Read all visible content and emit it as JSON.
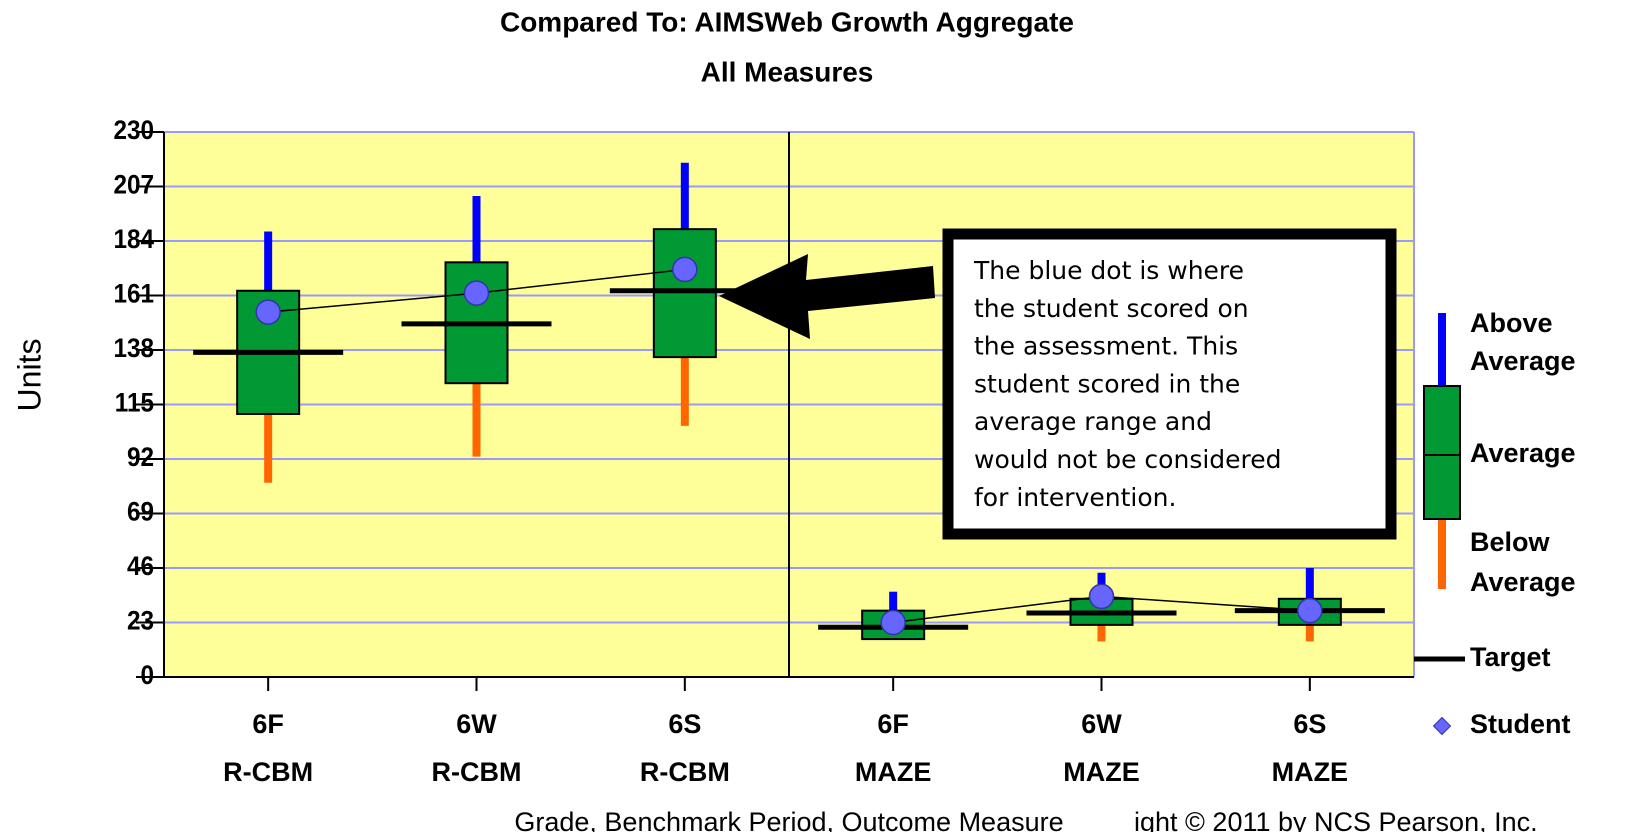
{
  "chart_data": {
    "type": "box",
    "title": [
      "Compared To: AIMSWeb Growth Aggregate",
      "All Measures"
    ],
    "y_label": "Units",
    "x_label": "Grade, Benchmark Period, Outcome Measure",
    "copyright": "ight © 2011 by NCS Pearson, Inc.",
    "categories": [
      [
        "6F",
        "R-CBM"
      ],
      [
        "6W",
        "R-CBM"
      ],
      [
        "6S",
        "R-CBM"
      ],
      [
        "6F",
        "MAZE"
      ],
      [
        "6W",
        "MAZE"
      ],
      [
        "6S",
        "MAZE"
      ]
    ],
    "whisker_high": [
      188,
      203,
      217,
      36,
      44,
      46
    ],
    "box_high": [
      163,
      175,
      189,
      28,
      33,
      33
    ],
    "box_low": [
      111,
      124,
      135,
      16,
      22,
      22
    ],
    "whisker_low": [
      82,
      93,
      106,
      null,
      15,
      15
    ],
    "target": [
      137,
      149,
      163,
      21,
      27,
      28
    ],
    "student": [
      154,
      162,
      172,
      23,
      34,
      28
    ],
    "ylim": [
      0,
      230
    ],
    "yticks": [
      0,
      23,
      46,
      69,
      92,
      115,
      138,
      161,
      184,
      207,
      230
    ],
    "grid": true,
    "colors": {
      "plot_background": "#ffff99",
      "grid": "#9999ff",
      "above": "#0000ff",
      "box": "#009933",
      "below": "#ff6600",
      "target": "#000000",
      "student": "#6666ff"
    },
    "legend": [
      [
        "Above",
        "Average"
      ],
      [
        "Average"
      ],
      [
        "Below",
        "Average"
      ],
      [
        "Target"
      ],
      [
        "Student"
      ]
    ],
    "annotation": [
      "The blue dot is where",
      "the student scored on",
      "the assessment.  This",
      "student scored in the",
      "average range and",
      "would not be considered",
      "for intervention."
    ]
  }
}
